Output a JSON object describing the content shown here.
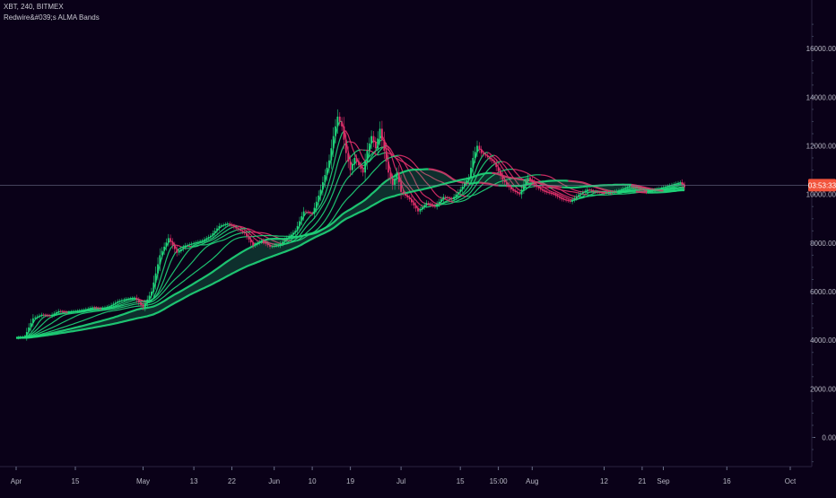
{
  "header": {
    "symbol_line": "XBT, 240, BITMEX",
    "indicator_line": "Redwire&#039;s ALMA Bands"
  },
  "colors": {
    "background": "#0a0118",
    "band_up": "#1fd67a",
    "band_down": "#e0306a",
    "candle_up": "#1fd67a",
    "candle_down": "#e0306a",
    "price_tag": "#f2543c",
    "price_line": "#7a7f9a"
  },
  "price_tag": {
    "label": "03:53:33",
    "value": 10380
  },
  "chart_data": {
    "type": "line",
    "title": "XBT, 240, BITMEX",
    "subtitle": "Redwire&#039;s ALMA Bands",
    "ylim": [
      -1200,
      18000
    ],
    "y_ticks": [
      0,
      2000,
      4000,
      6000,
      8000,
      10000,
      12000,
      14000,
      16000
    ],
    "y_tick_labels": [
      "0.00",
      "2000.00",
      "4000.00",
      "6000.00",
      "8000.00",
      "10000.00",
      "12000.00",
      "14000.00",
      "16000.00"
    ],
    "x_tick_labels": [
      "Apr",
      "15",
      "May",
      "13",
      "22",
      "Jun",
      "10",
      "19",
      "Jul",
      "15",
      "15:00",
      "Aug",
      "12",
      "21",
      "Sep",
      "16",
      "Oct"
    ],
    "x_tick_days": [
      0,
      14,
      30,
      42,
      51,
      61,
      70,
      79,
      91,
      105,
      114,
      122,
      139,
      148,
      153,
      168,
      183
    ],
    "x_range_days": [
      0,
      183
    ],
    "grid": false,
    "legend": "none",
    "close_series": [
      [
        0,
        4100
      ],
      [
        2,
        4150
      ],
      [
        4,
        4900
      ],
      [
        6,
        5050
      ],
      [
        8,
        5000
      ],
      [
        10,
        5200
      ],
      [
        12,
        5150
      ],
      [
        14,
        5200
      ],
      [
        16,
        5250
      ],
      [
        18,
        5350
      ],
      [
        20,
        5300
      ],
      [
        22,
        5400
      ],
      [
        24,
        5600
      ],
      [
        26,
        5700
      ],
      [
        28,
        5750
      ],
      [
        30,
        5350
      ],
      [
        32,
        6000
      ],
      [
        34,
        7500
      ],
      [
        36,
        8200
      ],
      [
        38,
        7600
      ],
      [
        40,
        7900
      ],
      [
        42,
        8000
      ],
      [
        44,
        8100
      ],
      [
        46,
        8300
      ],
      [
        48,
        8700
      ],
      [
        50,
        8800
      ],
      [
        52,
        8600
      ],
      [
        54,
        8400
      ],
      [
        56,
        7900
      ],
      [
        58,
        8100
      ],
      [
        60,
        7850
      ],
      [
        62,
        7900
      ],
      [
        64,
        8200
      ],
      [
        66,
        8500
      ],
      [
        68,
        9300
      ],
      [
        70,
        9200
      ],
      [
        72,
        10200
      ],
      [
        74,
        11400
      ],
      [
        75,
        12400
      ],
      [
        76,
        13200
      ],
      [
        77,
        12800
      ],
      [
        78,
        11700
      ],
      [
        79,
        11000
      ],
      [
        80,
        11500
      ],
      [
        82,
        10900
      ],
      [
        83,
        11800
      ],
      [
        84,
        12400
      ],
      [
        85,
        11900
      ],
      [
        86,
        12700
      ],
      [
        87,
        11800
      ],
      [
        88,
        10900
      ],
      [
        89,
        10400
      ],
      [
        90,
        10900
      ],
      [
        91,
        10100
      ],
      [
        93,
        9800
      ],
      [
        95,
        9300
      ],
      [
        97,
        9650
      ],
      [
        99,
        9500
      ],
      [
        101,
        9900
      ],
      [
        103,
        9800
      ],
      [
        105,
        10200
      ],
      [
        107,
        10700
      ],
      [
        108,
        11500
      ],
      [
        109,
        12000
      ],
      [
        110,
        11700
      ],
      [
        111,
        11600
      ],
      [
        113,
        11300
      ],
      [
        115,
        10600
      ],
      [
        117,
        10200
      ],
      [
        119,
        10000
      ],
      [
        120,
        10400
      ],
      [
        121,
        10700
      ],
      [
        123,
        10300
      ],
      [
        125,
        10100
      ],
      [
        127,
        10000
      ],
      [
        129,
        9800
      ],
      [
        131,
        9700
      ],
      [
        133,
        10000
      ],
      [
        135,
        10200
      ],
      [
        137,
        10100
      ],
      [
        139,
        10050
      ],
      [
        141,
        10100
      ],
      [
        143,
        10200
      ],
      [
        145,
        10350
      ],
      [
        147,
        10250
      ],
      [
        149,
        10100
      ],
      [
        151,
        10200
      ],
      [
        153,
        10300
      ],
      [
        155,
        10400
      ],
      [
        157,
        10500
      ],
      [
        158,
        10300
      ]
    ],
    "bands": [
      {
        "lag_days": 1
      },
      {
        "lag_days": 3
      },
      {
        "lag_days": 5
      },
      {
        "lag_days": 8
      },
      {
        "lag_days": 12
      },
      {
        "lag_days": 18
      },
      {
        "lag_days": 26
      },
      {
        "lag_days": 38
      }
    ]
  }
}
